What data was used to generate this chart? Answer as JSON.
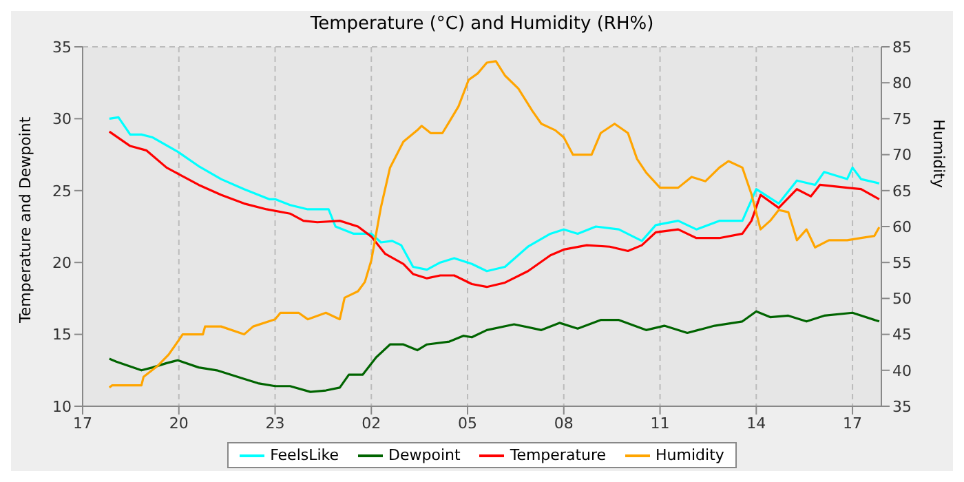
{
  "chart_data": {
    "type": "line",
    "title": "Temperature (°C) and Humidity (RH%)",
    "ylabel": "Temperature and Dewpoint",
    "y2label": "Humidity",
    "xlim": [
      "--01-01T17:00",
      "--01-02T17:54"
    ],
    "xticks": [
      {
        "value": "--01-01T17:00",
        "label": "17"
      },
      {
        "value": "--01-01T20:00",
        "label": "20"
      },
      {
        "value": "--01-01T23:00",
        "label": "23"
      },
      {
        "value": "--01-02T02:00",
        "label": "02"
      },
      {
        "value": "--01-02T05:00",
        "label": "05"
      },
      {
        "value": "--01-02T08:00",
        "label": "08"
      },
      {
        "value": "--01-02T11:00",
        "label": "11"
      },
      {
        "value": "--01-02T14:00",
        "label": "14"
      },
      {
        "value": "--01-02T17:00",
        "label": "17"
      }
    ],
    "ylim": [
      10,
      35
    ],
    "yticks": [
      10,
      15,
      20,
      25,
      30,
      35
    ],
    "y2lim": [
      35,
      85
    ],
    "y2ticks": [
      35,
      40,
      45,
      50,
      55,
      60,
      65,
      70,
      75,
      80,
      85
    ],
    "grid": true,
    "legend": "bottom",
    "line_style": "solid",
    "marker": "none",
    "series": [
      {
        "name": "FeelsLike",
        "color": "#00ffff",
        "x": [
          "--01-01T17:50",
          "--01-01T18:07",
          "--01-01T18:29",
          "--01-01T18:50",
          "--01-01T19:11",
          "--01-01T19:58",
          "--01-01T20:37",
          "--01-01T21:19",
          "--01-01T22:02",
          "--01-01T22:49",
          "--01-01T23:00",
          "--01-01T23:28",
          "--01-02T00:01",
          "--01-02T00:40",
          "--01-02T00:53",
          "--01-02T01:27",
          "--01-02T02:00",
          "--01-02T02:18",
          "--01-02T02:39",
          "--01-02T02:56",
          "--01-02T03:18",
          "--01-02T03:44",
          "--01-02T04:09",
          "--01-02T04:35",
          "--01-02T05:08",
          "--01-02T05:36",
          "--01-02T06:10",
          "--01-02T06:53",
          "--01-02T07:35",
          "--01-02T08:00",
          "--01-02T08:26",
          "--01-02T09:00",
          "--01-02T09:43",
          "--01-02T10:26",
          "--01-02T10:52",
          "--01-02T11:34",
          "--01-02T12:08",
          "--01-02T12:51",
          "--01-02T13:34",
          "--01-02T14:00",
          "--01-02T14:42",
          "--01-02T15:16",
          "--01-02T15:50",
          "--01-02T16:07",
          "--01-02T16:50",
          "--01-02T17:00",
          "--01-02T17:16",
          "--01-02T17:50"
        ],
        "values": [
          30.0,
          30.1,
          28.9,
          28.9,
          28.7,
          27.7,
          26.7,
          25.8,
          25.1,
          24.4,
          24.4,
          24.0,
          23.7,
          23.7,
          22.5,
          22.0,
          22.0,
          21.4,
          21.5,
          21.2,
          19.7,
          19.5,
          20.0,
          20.3,
          19.9,
          19.4,
          19.7,
          21.1,
          22.0,
          22.3,
          22.0,
          22.5,
          22.3,
          21.5,
          22.6,
          22.9,
          22.3,
          22.9,
          22.9,
          25.1,
          24.1,
          25.7,
          25.4,
          26.3,
          25.8,
          26.6,
          25.8,
          25.5
        ]
      },
      {
        "name": "Dewpoint",
        "color": "#006400",
        "x": [
          "--01-01T17:50",
          "--01-01T18:03",
          "--01-01T18:50",
          "--01-01T19:11",
          "--01-01T19:37",
          "--01-01T19:58",
          "--01-01T20:37",
          "--01-01T21:11",
          "--01-01T22:02",
          "--01-01T22:28",
          "--01-01T23:00",
          "--01-01T23:28",
          "--01-02T00:06",
          "--01-02T00:35",
          "--01-02T01:01",
          "--01-02T01:18",
          "--01-02T01:44",
          "--01-02T02:09",
          "--01-02T02:35",
          "--01-02T03:00",
          "--01-02T03:26",
          "--01-02T03:44",
          "--01-02T04:26",
          "--01-02T04:52",
          "--01-02T05:08",
          "--01-02T05:36",
          "--01-02T06:27",
          "--01-02T07:18",
          "--01-02T07:52",
          "--01-02T08:26",
          "--01-02T09:09",
          "--01-02T09:43",
          "--01-02T10:34",
          "--01-02T11:08",
          "--01-02T11:51",
          "--01-02T12:42",
          "--01-02T13:34",
          "--01-02T14:00",
          "--01-02T14:26",
          "--01-02T15:00",
          "--01-02T15:34",
          "--01-02T16:07",
          "--01-02T17:00",
          "--01-02T17:50"
        ],
        "values": [
          13.3,
          13.1,
          12.5,
          12.7,
          13.0,
          13.2,
          12.7,
          12.5,
          11.9,
          11.6,
          11.4,
          11.4,
          11.0,
          11.1,
          11.3,
          12.2,
          12.2,
          13.4,
          14.3,
          14.3,
          13.9,
          14.3,
          14.5,
          14.9,
          14.8,
          15.3,
          15.7,
          15.3,
          15.8,
          15.4,
          16.0,
          16.0,
          15.3,
          15.6,
          15.1,
          15.6,
          15.9,
          16.6,
          16.2,
          16.3,
          15.9,
          16.3,
          16.5,
          15.9
        ]
      },
      {
        "name": "Temperature",
        "color": "#ff0000",
        "x": [
          "--01-01T17:50",
          "--01-01T18:29",
          "--01-01T18:59",
          "--01-01T19:37",
          "--01-01T20:02",
          "--01-01T20:37",
          "--01-01T21:19",
          "--01-01T22:02",
          "--01-01T22:44",
          "--01-01T23:28",
          "--01-01T23:53",
          "--01-02T00:19",
          "--01-02T01:01",
          "--01-02T01:35",
          "--01-02T02:00",
          "--01-02T02:26",
          "--01-02T03:00",
          "--01-02T03:18",
          "--01-02T03:44",
          "--01-02T04:09",
          "--01-02T04:35",
          "--01-02T05:08",
          "--01-02T05:36",
          "--01-02T06:10",
          "--01-02T06:53",
          "--01-02T07:35",
          "--01-02T08:00",
          "--01-02T08:43",
          "--01-02T09:26",
          "--01-02T10:00",
          "--01-02T10:26",
          "--01-02T10:52",
          "--01-02T11:34",
          "--01-02T12:08",
          "--01-02T12:51",
          "--01-02T13:34",
          "--01-02T13:51",
          "--01-02T14:08",
          "--01-02T14:42",
          "--01-02T15:16",
          "--01-02T15:42",
          "--01-02T15:59",
          "--01-02T16:50",
          "--01-02T17:16",
          "--01-02T17:50"
        ],
        "values": [
          29.1,
          28.1,
          27.8,
          26.6,
          26.1,
          25.4,
          24.7,
          24.1,
          23.7,
          23.4,
          22.9,
          22.8,
          22.9,
          22.5,
          21.8,
          20.6,
          19.9,
          19.2,
          18.9,
          19.1,
          19.1,
          18.5,
          18.3,
          18.6,
          19.4,
          20.5,
          20.9,
          21.2,
          21.1,
          20.8,
          21.2,
          22.1,
          22.3,
          21.7,
          21.7,
          22.0,
          22.9,
          24.7,
          23.8,
          25.1,
          24.6,
          25.4,
          25.2,
          25.1,
          24.4
        ]
      },
      {
        "name": "Humidity",
        "color": "#ffa500",
        "axis": "y2",
        "x": [
          "--01-01T17:50",
          "--01-01T17:55",
          "--01-01T18:50",
          "--01-01T18:54",
          "--01-01T19:20",
          "--01-01T19:41",
          "--01-01T19:58",
          "--01-01T20:07",
          "--01-01T20:45",
          "--01-01T20:49",
          "--01-01T21:19",
          "--01-01T22:02",
          "--01-01T22:19",
          "--01-01T23:00",
          "--01-01T23:10",
          "--01-01T23:44",
          "--01-02T00:01",
          "--01-02T00:35",
          "--01-02T01:01",
          "--01-02T01:10",
          "--01-02T01:35",
          "--01-02T01:48",
          "--01-02T02:00",
          "--01-02T02:18",
          "--01-02T02:35",
          "--01-02T03:00",
          "--01-02T03:26",
          "--01-02T03:34",
          "--01-02T03:51",
          "--01-02T04:13",
          "--01-02T04:26",
          "--01-02T04:43",
          "--01-02T05:02",
          "--01-02T05:19",
          "--01-02T05:36",
          "--01-02T05:53",
          "--01-02T06:10",
          "--01-02T06:35",
          "--01-02T07:01",
          "--01-02T07:18",
          "--01-02T07:44",
          "--01-02T08:00",
          "--01-02T08:17",
          "--01-02T08:52",
          "--01-02T09:09",
          "--01-02T09:35",
          "--01-02T10:00",
          "--01-02T10:17",
          "--01-02T10:34",
          "--01-02T11:00",
          "--01-02T11:34",
          "--01-02T11:59",
          "--01-02T12:25",
          "--01-02T12:51",
          "--01-02T13:08",
          "--01-02T13:34",
          "--01-02T13:51",
          "--01-02T14:08",
          "--01-02T14:26",
          "--01-02T14:42",
          "--01-02T15:00",
          "--01-02T15:16",
          "--01-02T15:34",
          "--01-02T15:50",
          "--01-02T16:16",
          "--01-02T16:50",
          "--01-02T17:16",
          "--01-02T17:41",
          "--01-02T17:50"
        ],
        "values": [
          37.6,
          37.9,
          37.9,
          39.1,
          40.6,
          42.2,
          44.0,
          45.0,
          45.0,
          46.1,
          46.1,
          45.0,
          46.1,
          47.1,
          48.0,
          48.0,
          47.1,
          48.0,
          47.1,
          50.1,
          51.0,
          52.3,
          55.3,
          62.7,
          68.2,
          71.8,
          73.4,
          74.0,
          73.0,
          73.0,
          74.6,
          76.7,
          80.4,
          81.3,
          82.8,
          83.0,
          81.0,
          79.2,
          76.1,
          74.3,
          73.4,
          72.4,
          70.0,
          70.0,
          73.0,
          74.3,
          73.0,
          69.4,
          67.5,
          65.4,
          65.4,
          66.9,
          66.3,
          68.2,
          69.1,
          68.2,
          64.5,
          59.6,
          60.8,
          62.3,
          62.0,
          58.1,
          59.6,
          57.1,
          58.1,
          58.1,
          58.4,
          58.7,
          59.9
        ]
      }
    ]
  }
}
